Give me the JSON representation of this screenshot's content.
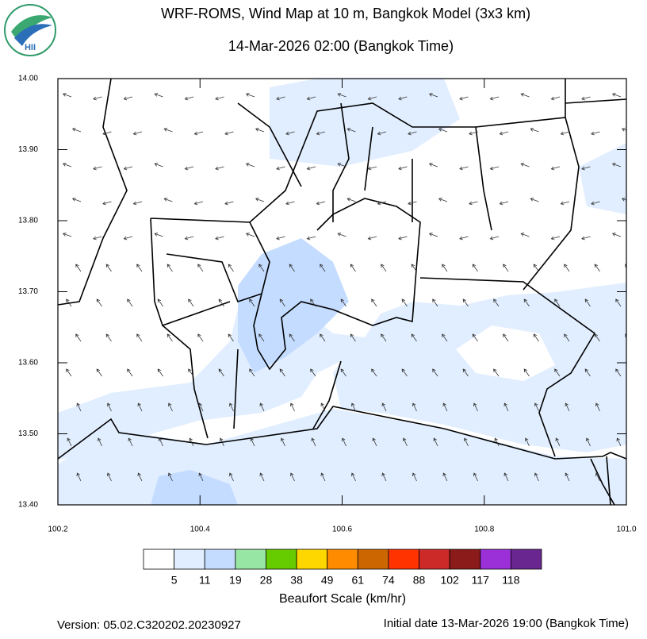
{
  "chart_data": {
    "type": "map",
    "title": "WRF-ROMS, Wind Map at 10 m, Bangkok Model (3x3 km)",
    "subtitle": "14-Mar-2026 02:00 (Bangkok Time)",
    "logo": "HII",
    "xlim": [
      100.2,
      101.0
    ],
    "ylim": [
      13.4,
      14.0
    ],
    "xticks": [
      100.2,
      100.4,
      100.6,
      100.8,
      {
        "value": 101.0,
        "label": "101.0"
      }
    ],
    "yticks": [
      {
        "value": 13.4,
        "label": "13.40"
      },
      {
        "value": 13.5,
        "label": "13.50"
      },
      {
        "value": 13.6,
        "label": "13.60"
      },
      {
        "value": 13.7,
        "label": "13.70"
      },
      {
        "value": 13.8,
        "label": "13.80"
      },
      {
        "value": 13.9,
        "label": "13.90"
      },
      {
        "value": 14.0,
        "label": "14.00"
      }
    ],
    "colorbar": {
      "title": "Beaufort Scale (km/hr)",
      "colors": [
        "#ffffff",
        "#e1eeff",
        "#c4dcff",
        "#98e6a4",
        "#66cc00",
        "#ffd700",
        "#ff8c00",
        "#cc6600",
        "#ff3300",
        "#cc2929",
        "#8b1a1a",
        "#9b30d9",
        "#6a2690"
      ],
      "ticks": [
        5,
        11,
        19,
        28,
        38,
        49,
        61,
        74,
        88,
        102,
        117,
        118
      ]
    },
    "version": "Version: 05.02.C320202.20230927",
    "initial_date": "Initial date 13-Mar-2026 19:00 (Bangkok Time)"
  }
}
